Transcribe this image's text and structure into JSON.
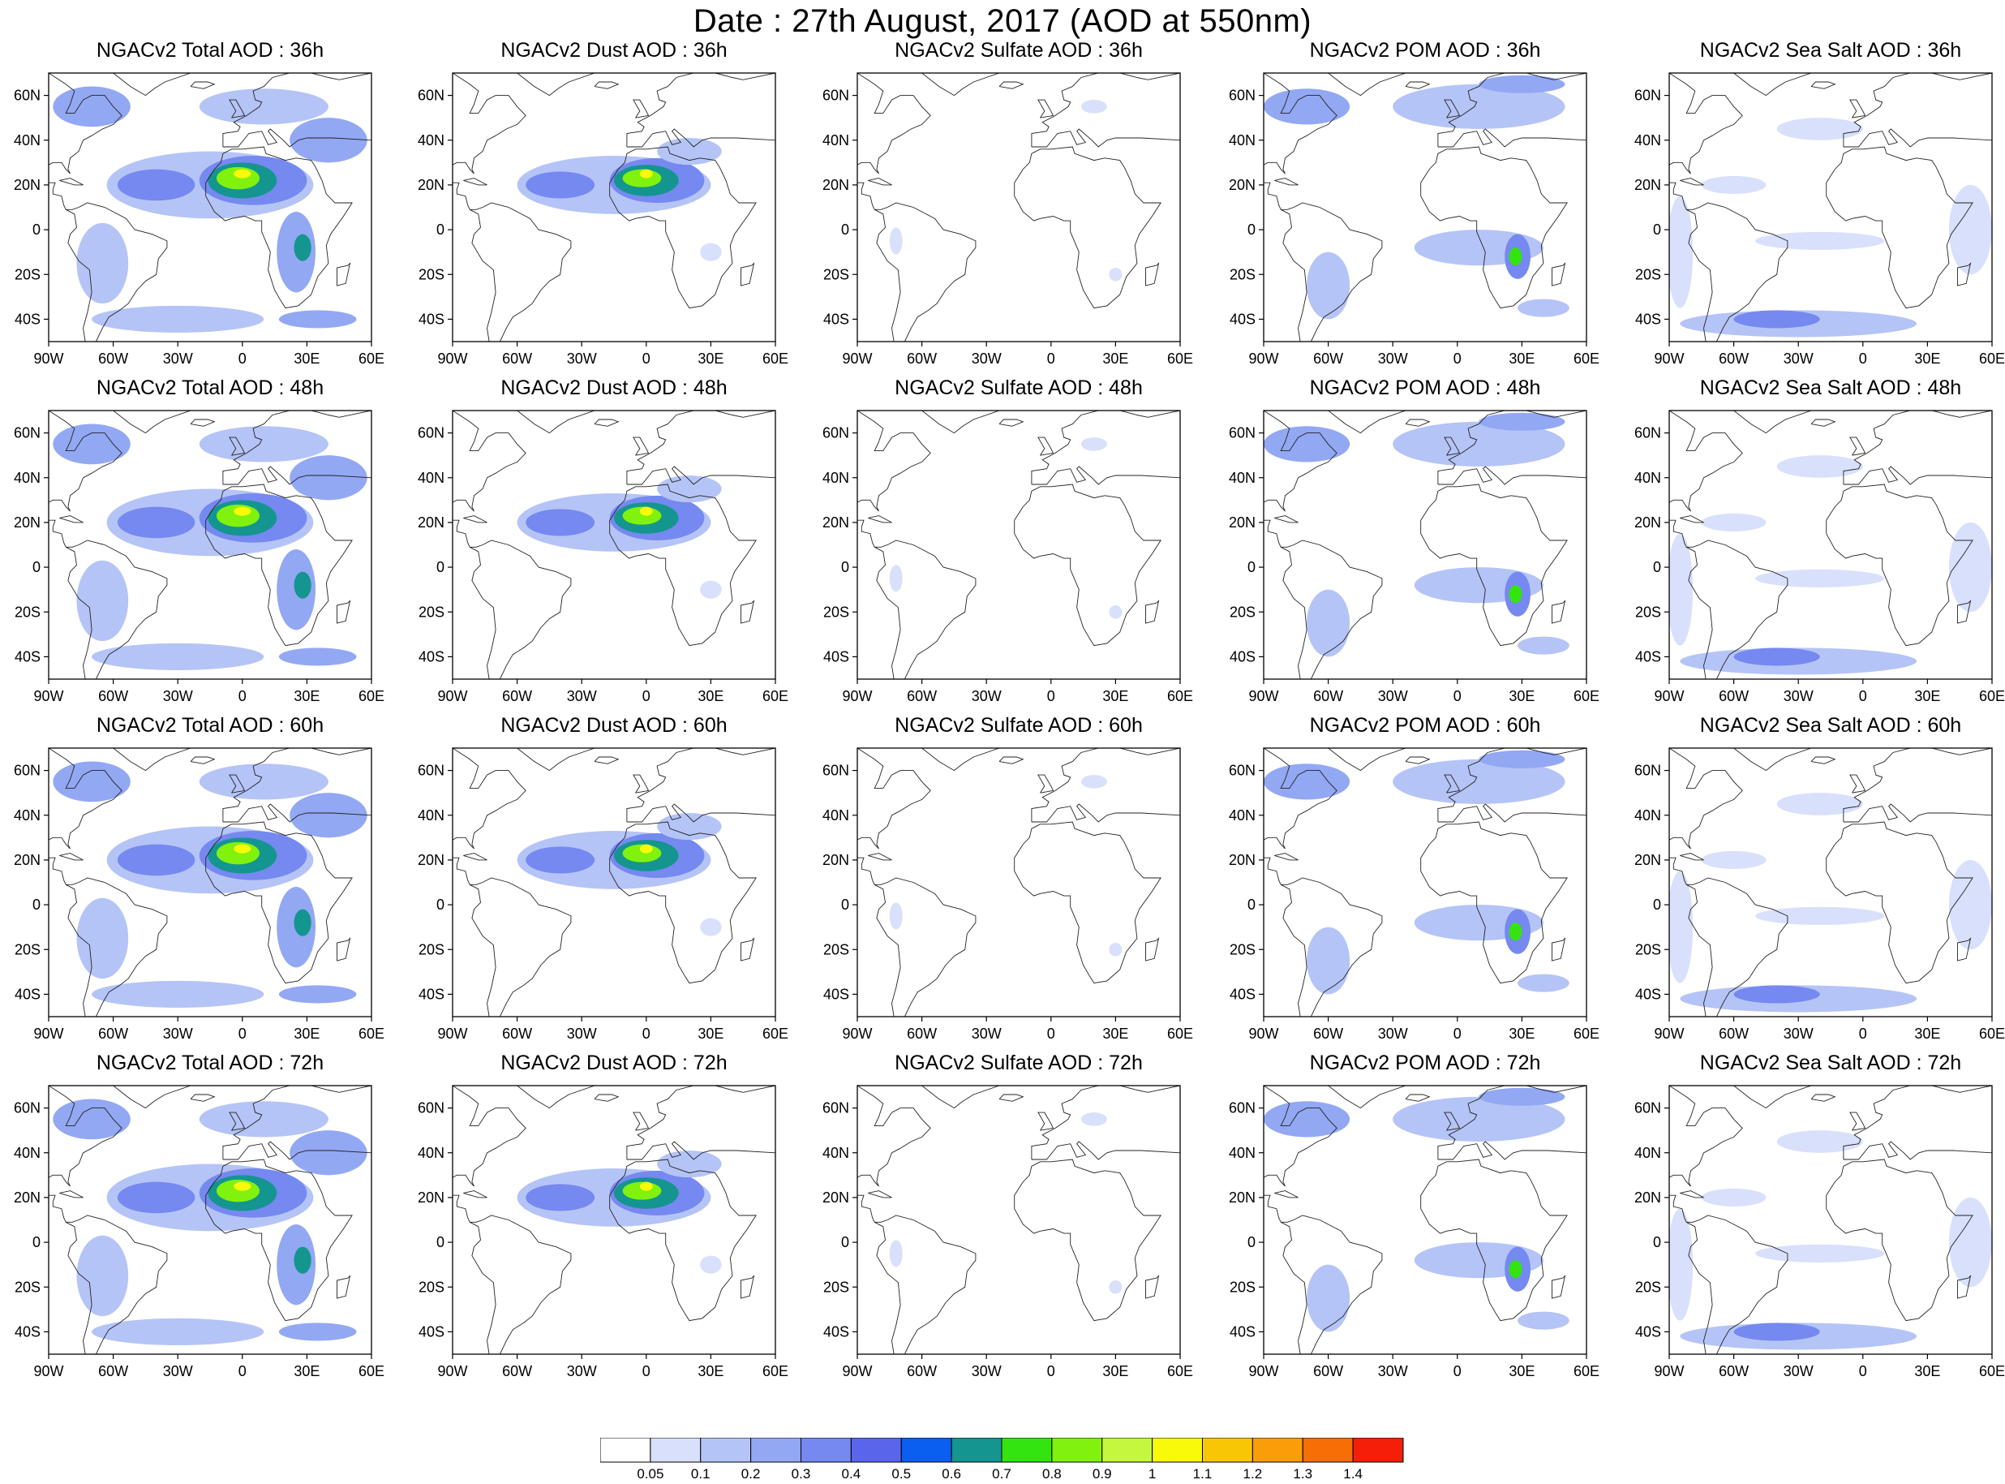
{
  "title": "Date : 27th August, 2017 (AOD at 550nm)",
  "map": {
    "lon_range": [
      -90,
      60
    ],
    "lat_range": [
      -50,
      70
    ],
    "x_ticks": [
      {
        "value": -90,
        "label": "90W"
      },
      {
        "value": -60,
        "label": "60W"
      },
      {
        "value": -30,
        "label": "30W"
      },
      {
        "value": 0,
        "label": "0"
      },
      {
        "value": 30,
        "label": "30E"
      },
      {
        "value": 60,
        "label": "60E"
      }
    ],
    "y_ticks": [
      {
        "value": 60,
        "label": "60N"
      },
      {
        "value": 40,
        "label": "40N"
      },
      {
        "value": 20,
        "label": "20N"
      },
      {
        "value": 0,
        "label": "0"
      },
      {
        "value": -20,
        "label": "20S"
      },
      {
        "value": -40,
        "label": "40S"
      }
    ]
  },
  "colorbar": {
    "boundaries": [
      "0.05",
      "0.1",
      "0.2",
      "0.3",
      "0.4",
      "0.5",
      "0.6",
      "0.7",
      "0.8",
      "0.9",
      "1",
      "1.1",
      "1.2",
      "1.3",
      "1.4"
    ],
    "colors": [
      "#ffffff",
      "#d8e0fb",
      "#b5c4f6",
      "#93a8f3",
      "#7589f0",
      "#5966ec",
      "#0b5ff0",
      "#14958f",
      "#33e40e",
      "#80f20d",
      "#c4f73d",
      "#f9f90a",
      "#f9c606",
      "#f99e08",
      "#f76e07",
      "#f51e09"
    ]
  },
  "panels": [
    {
      "row": 0,
      "col": 0,
      "species": "total",
      "title": "NGACv2 Total AOD : 36h"
    },
    {
      "row": 0,
      "col": 1,
      "species": "dust",
      "title": "NGACv2 Dust AOD : 36h"
    },
    {
      "row": 0,
      "col": 2,
      "species": "sulfate",
      "title": "NGACv2 Sulfate AOD : 36h"
    },
    {
      "row": 0,
      "col": 3,
      "species": "pom",
      "title": "NGACv2 POM AOD : 36h"
    },
    {
      "row": 0,
      "col": 4,
      "species": "seasalt",
      "title": "NGACv2 Sea Salt AOD : 36h"
    },
    {
      "row": 1,
      "col": 0,
      "species": "total",
      "title": "NGACv2 Total AOD : 48h"
    },
    {
      "row": 1,
      "col": 1,
      "species": "dust",
      "title": "NGACv2 Dust AOD : 48h"
    },
    {
      "row": 1,
      "col": 2,
      "species": "sulfate",
      "title": "NGACv2 Sulfate AOD : 48h"
    },
    {
      "row": 1,
      "col": 3,
      "species": "pom",
      "title": "NGACv2 POM AOD : 48h"
    },
    {
      "row": 1,
      "col": 4,
      "species": "seasalt",
      "title": "NGACv2 Sea Salt AOD : 48h"
    },
    {
      "row": 2,
      "col": 0,
      "species": "total",
      "title": "NGACv2 Total AOD : 60h"
    },
    {
      "row": 2,
      "col": 1,
      "species": "dust",
      "title": "NGACv2 Dust AOD : 60h"
    },
    {
      "row": 2,
      "col": 2,
      "species": "sulfate",
      "title": "NGACv2 Sulfate AOD : 60h"
    },
    {
      "row": 2,
      "col": 3,
      "species": "pom",
      "title": "NGACv2 POM AOD : 60h"
    },
    {
      "row": 2,
      "col": 4,
      "species": "seasalt",
      "title": "NGACv2 Sea Salt AOD : 60h"
    },
    {
      "row": 3,
      "col": 0,
      "species": "total",
      "title": "NGACv2 Total AOD : 72h"
    },
    {
      "row": 3,
      "col": 1,
      "species": "dust",
      "title": "NGACv2 Dust AOD : 72h"
    },
    {
      "row": 3,
      "col": 2,
      "species": "sulfate",
      "title": "NGACv2 Sulfate AOD : 72h"
    },
    {
      "row": 3,
      "col": 3,
      "species": "pom",
      "title": "NGACv2 POM AOD : 72h"
    },
    {
      "row": 3,
      "col": 4,
      "species": "seasalt",
      "title": "NGACv2 Sea Salt  AOD : 72h"
    }
  ]
}
